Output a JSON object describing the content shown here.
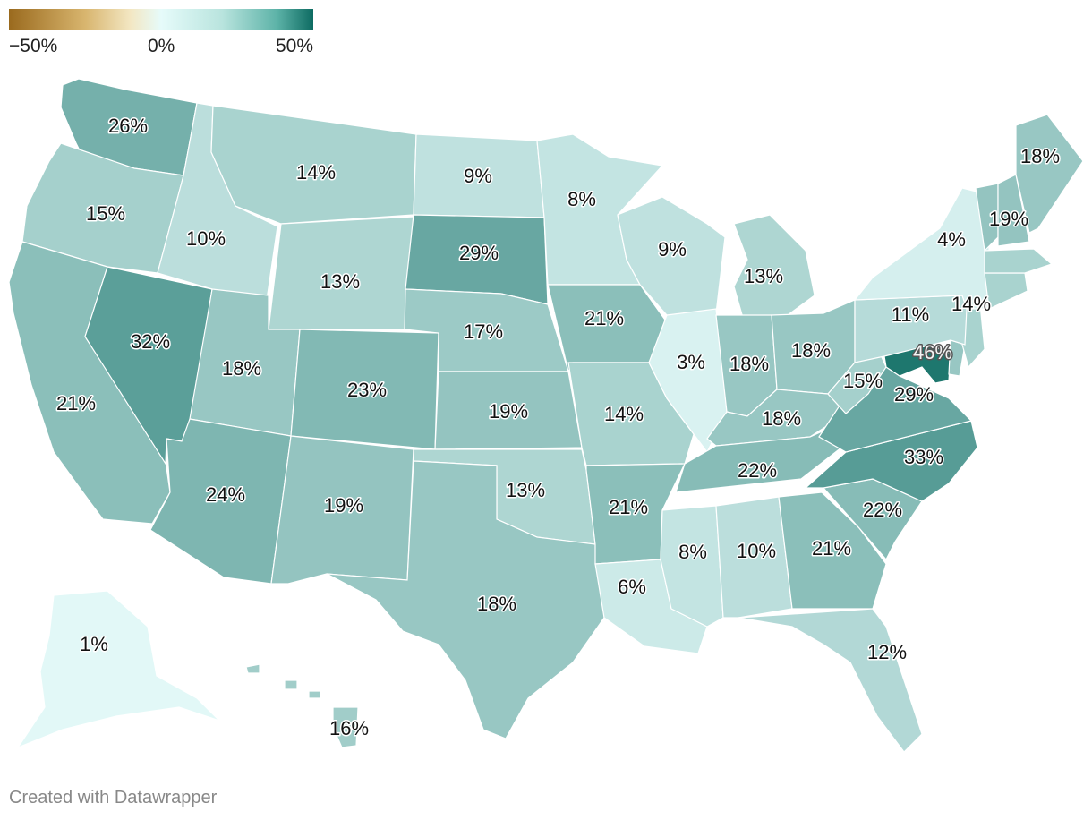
{
  "legend": {
    "min_label": "−50%",
    "mid_label": "0%",
    "max_label": "50%"
  },
  "credit": "Created with Datawrapper",
  "color_scale": [
    "#9a6a1e",
    "#e6fbfa",
    "#0d6b62"
  ],
  "states": [
    {
      "id": "WA",
      "value": 26,
      "label": "26%"
    },
    {
      "id": "OR",
      "value": 15,
      "label": "15%"
    },
    {
      "id": "CA",
      "value": 21,
      "label": "21%"
    },
    {
      "id": "NV",
      "value": 32,
      "label": "32%"
    },
    {
      "id": "ID",
      "value": 10,
      "label": "10%"
    },
    {
      "id": "MT",
      "value": 14,
      "label": "14%"
    },
    {
      "id": "WY",
      "value": 13,
      "label": "13%"
    },
    {
      "id": "UT",
      "value": 18,
      "label": "18%"
    },
    {
      "id": "AZ",
      "value": 24,
      "label": "24%"
    },
    {
      "id": "CO",
      "value": 23,
      "label": "23%"
    },
    {
      "id": "NM",
      "value": 19,
      "label": "19%"
    },
    {
      "id": "ND",
      "value": 9,
      "label": "9%"
    },
    {
      "id": "SD",
      "value": 29,
      "label": "29%"
    },
    {
      "id": "NE",
      "value": 17,
      "label": "17%"
    },
    {
      "id": "KS",
      "value": 19,
      "label": "19%"
    },
    {
      "id": "OK",
      "value": 13,
      "label": "13%"
    },
    {
      "id": "TX",
      "value": 18,
      "label": "18%"
    },
    {
      "id": "MN",
      "value": 8,
      "label": "8%"
    },
    {
      "id": "IA",
      "value": 21,
      "label": "21%"
    },
    {
      "id": "MO",
      "value": 14,
      "label": "14%"
    },
    {
      "id": "AR",
      "value": 21,
      "label": "21%"
    },
    {
      "id": "LA",
      "value": 6,
      "label": "6%"
    },
    {
      "id": "WI",
      "value": 9,
      "label": "9%"
    },
    {
      "id": "IL",
      "value": 3,
      "label": "3%"
    },
    {
      "id": "MI",
      "value": 13,
      "label": "13%"
    },
    {
      "id": "IN",
      "value": 18,
      "label": "18%"
    },
    {
      "id": "OH",
      "value": 18,
      "label": "18%"
    },
    {
      "id": "KY",
      "value": 18,
      "label": "18%"
    },
    {
      "id": "TN",
      "value": 22,
      "label": "22%"
    },
    {
      "id": "MS",
      "value": 8,
      "label": "8%"
    },
    {
      "id": "AL",
      "value": 10,
      "label": "10%"
    },
    {
      "id": "GA",
      "value": 21,
      "label": "21%"
    },
    {
      "id": "FL",
      "value": 12,
      "label": "12%"
    },
    {
      "id": "SC",
      "value": 22,
      "label": "22%"
    },
    {
      "id": "NC",
      "value": 33,
      "label": "33%"
    },
    {
      "id": "VA",
      "value": 29,
      "label": "29%"
    },
    {
      "id": "WV",
      "value": 15,
      "label": "15%"
    },
    {
      "id": "MD",
      "value": 46,
      "label": "46%"
    },
    {
      "id": "DE",
      "value": 18
    },
    {
      "id": "NJ",
      "value": 14
    },
    {
      "id": "PA",
      "value": 11,
      "label": "11%"
    },
    {
      "id": "NY",
      "value": 4,
      "label": "4%"
    },
    {
      "id": "CT",
      "value": 14,
      "label": "14%"
    },
    {
      "id": "MA",
      "value": 14
    },
    {
      "id": "VT",
      "value": 19
    },
    {
      "id": "NH",
      "value": 19,
      "label": "19%"
    },
    {
      "id": "ME",
      "value": 18,
      "label": "18%"
    },
    {
      "id": "AK",
      "value": 1,
      "label": "1%"
    },
    {
      "id": "HI",
      "value": 16,
      "label": "16%"
    }
  ]
}
